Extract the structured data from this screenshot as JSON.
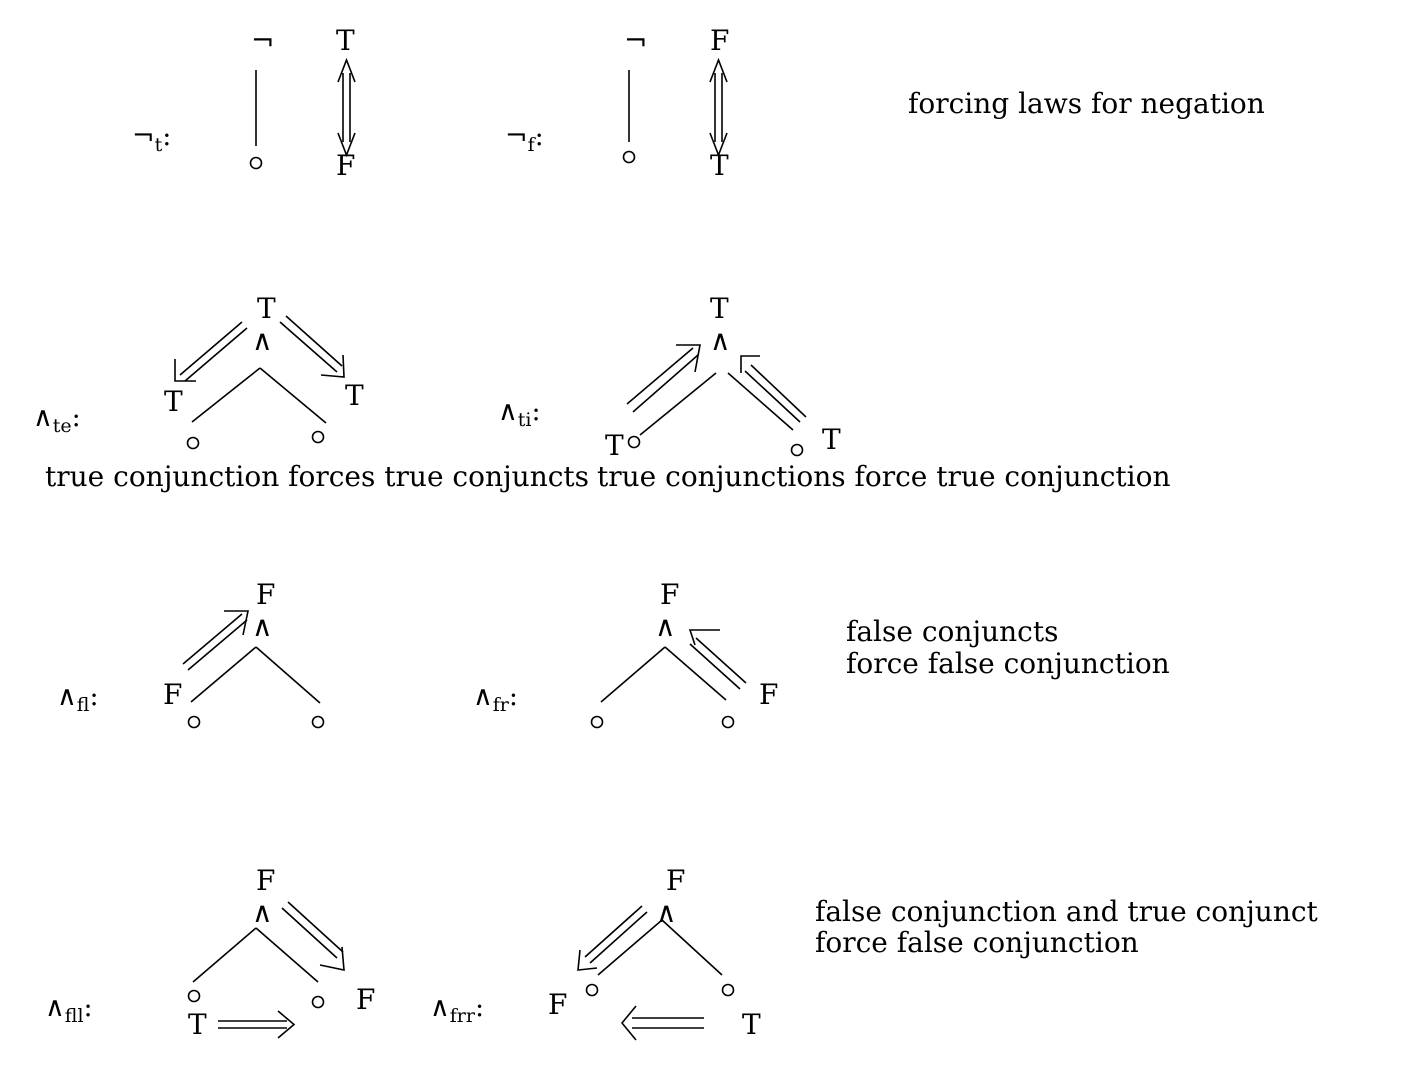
{
  "symbols": {
    "neg": "¬",
    "and": "∧",
    "true": "T",
    "false": "F"
  },
  "rules": {
    "neg_t": {
      "sub": "t",
      "colon": ":"
    },
    "neg_f": {
      "sub": "f",
      "colon": ":"
    },
    "and_te": {
      "sub": "te",
      "colon": ":"
    },
    "and_ti": {
      "sub": "ti",
      "colon": ":"
    },
    "and_fl": {
      "sub": "fl",
      "colon": ":"
    },
    "and_fr": {
      "sub": "fr",
      "colon": ":"
    },
    "and_fll": {
      "sub": "fll",
      "colon": ":"
    },
    "and_frr": {
      "sub": "frr",
      "colon": ":"
    }
  },
  "captions": {
    "negation": "forcing laws for negation",
    "true_conj": "true conjunction forces true conjuncts",
    "true_conjs": "true conjunctions force true conjunction",
    "false_conjs_1": "false conjuncts",
    "false_conjs_2": "force false conjunction",
    "false_and_true_1": "false conjunction and true conjunct",
    "false_and_true_2": "force false conjunction"
  }
}
